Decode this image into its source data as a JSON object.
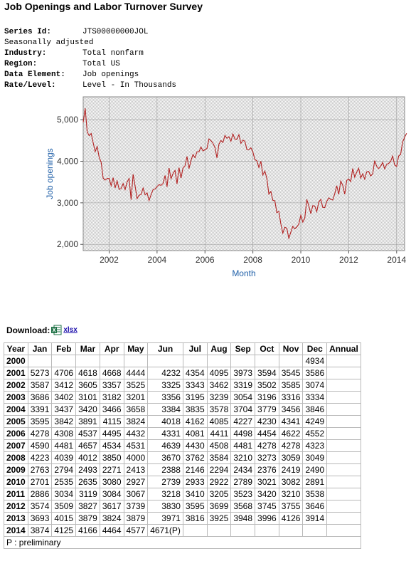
{
  "title": "Job Openings and Labor Turnover Survey",
  "meta": {
    "series_id_label": "Series Id:",
    "series_id": "JTS00000000JOL",
    "seasonal": "Seasonally adjusted",
    "industry_label": "Industry:",
    "industry": "Total nonfarm",
    "region_label": "Region:",
    "region": "Total US",
    "element_label": "Data Element:",
    "element": "Job openings",
    "rate_label": "Rate/Level:",
    "rate": "Level - In Thousands"
  },
  "colors": {
    "line": "#b22222",
    "axis_label": "#1f5fa8"
  },
  "download": {
    "label": "Download:",
    "link": "xlsx",
    "icon": "excel-icon"
  },
  "chart_data": {
    "type": "line",
    "xlabel": "Month",
    "ylabel": "Job openings",
    "x_ticks": [
      "2002",
      "2004",
      "2006",
      "2008",
      "2010",
      "2012",
      "2014"
    ],
    "y_ticks": [
      "2,000",
      "3,000",
      "4,000",
      "5,000"
    ],
    "xlim": [
      2000.917,
      2014.333
    ],
    "ylim": [
      1850,
      5550
    ],
    "grid": true,
    "series": [
      {
        "values": [
          4934,
          5273,
          4706,
          4618,
          4668,
          4444,
          4232,
          4354,
          4095,
          3973,
          3594,
          3545,
          3586,
          3587,
          3412,
          3605,
          3357,
          3525,
          3325,
          3343,
          3462,
          3319,
          3502,
          3585,
          3074,
          3686,
          3402,
          3101,
          3182,
          3201,
          3356,
          3195,
          3239,
          3054,
          3196,
          3316,
          3334,
          3391,
          3437,
          3420,
          3466,
          3658,
          3384,
          3835,
          3578,
          3704,
          3779,
          3456,
          3846,
          3595,
          3842,
          3891,
          4115,
          3824,
          4018,
          4162,
          4085,
          4227,
          4230,
          4341,
          4249,
          4278,
          4308,
          4537,
          4495,
          4432,
          4331,
          4081,
          4411,
          4498,
          4454,
          4622,
          4552,
          4590,
          4481,
          4657,
          4534,
          4531,
          4639,
          4430,
          4508,
          4481,
          4278,
          4278,
          4323,
          4223,
          4039,
          4012,
          3850,
          4000,
          3670,
          3762,
          3584,
          3210,
          3273,
          3059,
          3049,
          2763,
          2794,
          2493,
          2271,
          2413,
          2388,
          2146,
          2294,
          2434,
          2376,
          2419,
          2490,
          2701,
          2535,
          2635,
          3080,
          2927,
          2739,
          2933,
          2922,
          2789,
          3021,
          3082,
          2891,
          2886,
          3034,
          3119,
          3084,
          3067,
          3218,
          3410,
          3205,
          3523,
          3420,
          3210,
          3538,
          3574,
          3509,
          3827,
          3617,
          3739,
          3830,
          3595,
          3699,
          3568,
          3745,
          3755,
          3646,
          3693,
          4015,
          3879,
          3824,
          3879,
          3971,
          3816,
          3925,
          3948,
          3996,
          4126,
          3914,
          3874,
          4125,
          4166,
          4464,
          4577,
          4671
        ]
      }
    ]
  },
  "table": {
    "headers": [
      "Year",
      "Jan",
      "Feb",
      "Mar",
      "Apr",
      "May",
      "Jun",
      "Jul",
      "Aug",
      "Sep",
      "Oct",
      "Nov",
      "Dec",
      "Annual"
    ],
    "rows": [
      [
        "2000",
        "",
        "",
        "",
        "",
        "",
        "",
        "",
        "",
        "",
        "",
        "",
        "4934",
        ""
      ],
      [
        "2001",
        "5273",
        "4706",
        "4618",
        "4668",
        "4444",
        "4232",
        "4354",
        "4095",
        "3973",
        "3594",
        "3545",
        "3586",
        ""
      ],
      [
        "2002",
        "3587",
        "3412",
        "3605",
        "3357",
        "3525",
        "3325",
        "3343",
        "3462",
        "3319",
        "3502",
        "3585",
        "3074",
        ""
      ],
      [
        "2003",
        "3686",
        "3402",
        "3101",
        "3182",
        "3201",
        "3356",
        "3195",
        "3239",
        "3054",
        "3196",
        "3316",
        "3334",
        ""
      ],
      [
        "2004",
        "3391",
        "3437",
        "3420",
        "3466",
        "3658",
        "3384",
        "3835",
        "3578",
        "3704",
        "3779",
        "3456",
        "3846",
        ""
      ],
      [
        "2005",
        "3595",
        "3842",
        "3891",
        "4115",
        "3824",
        "4018",
        "4162",
        "4085",
        "4227",
        "4230",
        "4341",
        "4249",
        ""
      ],
      [
        "2006",
        "4278",
        "4308",
        "4537",
        "4495",
        "4432",
        "4331",
        "4081",
        "4411",
        "4498",
        "4454",
        "4622",
        "4552",
        ""
      ],
      [
        "2007",
        "4590",
        "4481",
        "4657",
        "4534",
        "4531",
        "4639",
        "4430",
        "4508",
        "4481",
        "4278",
        "4278",
        "4323",
        ""
      ],
      [
        "2008",
        "4223",
        "4039",
        "4012",
        "3850",
        "4000",
        "3670",
        "3762",
        "3584",
        "3210",
        "3273",
        "3059",
        "3049",
        ""
      ],
      [
        "2009",
        "2763",
        "2794",
        "2493",
        "2271",
        "2413",
        "2388",
        "2146",
        "2294",
        "2434",
        "2376",
        "2419",
        "2490",
        ""
      ],
      [
        "2010",
        "2701",
        "2535",
        "2635",
        "3080",
        "2927",
        "2739",
        "2933",
        "2922",
        "2789",
        "3021",
        "3082",
        "2891",
        ""
      ],
      [
        "2011",
        "2886",
        "3034",
        "3119",
        "3084",
        "3067",
        "3218",
        "3410",
        "3205",
        "3523",
        "3420",
        "3210",
        "3538",
        ""
      ],
      [
        "2012",
        "3574",
        "3509",
        "3827",
        "3617",
        "3739",
        "3830",
        "3595",
        "3699",
        "3568",
        "3745",
        "3755",
        "3646",
        ""
      ],
      [
        "2013",
        "3693",
        "4015",
        "3879",
        "3824",
        "3879",
        "3971",
        "3816",
        "3925",
        "3948",
        "3996",
        "4126",
        "3914",
        ""
      ],
      [
        "2014",
        "3874",
        "4125",
        "4166",
        "4464",
        "4577",
        "4671(P)",
        "",
        "",
        "",
        "",
        "",
        "",
        ""
      ]
    ],
    "footnote": "P : preliminary"
  }
}
